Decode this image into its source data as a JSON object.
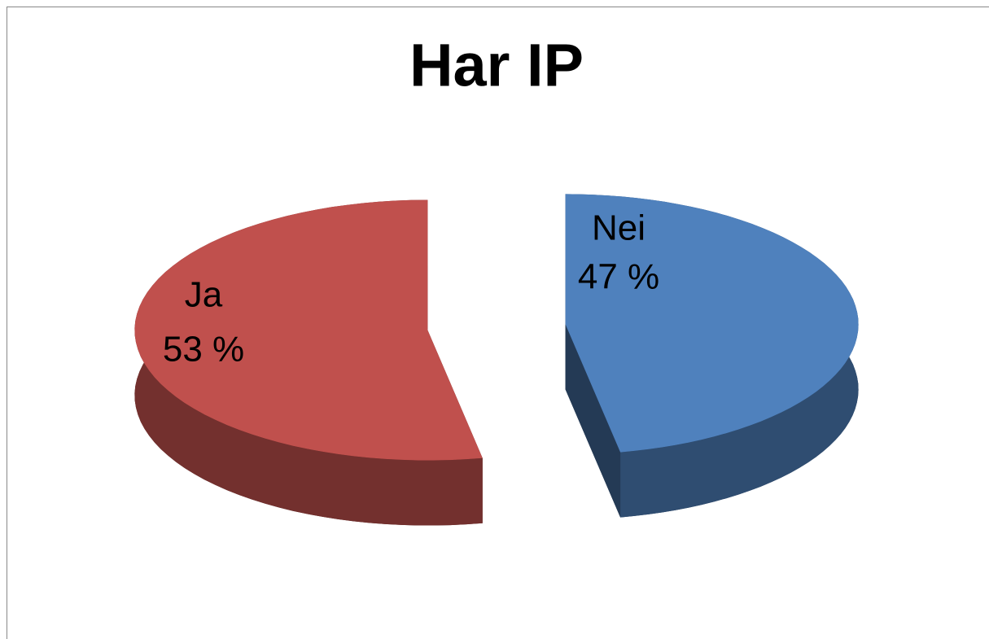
{
  "chart_data": {
    "type": "pie",
    "title": "Har IP",
    "categories": [
      "Nei",
      "Ja"
    ],
    "values": [
      47,
      53
    ],
    "value_labels": [
      "47 %",
      "53 %"
    ],
    "colors": [
      "#4f81bd",
      "#c0504d"
    ]
  }
}
